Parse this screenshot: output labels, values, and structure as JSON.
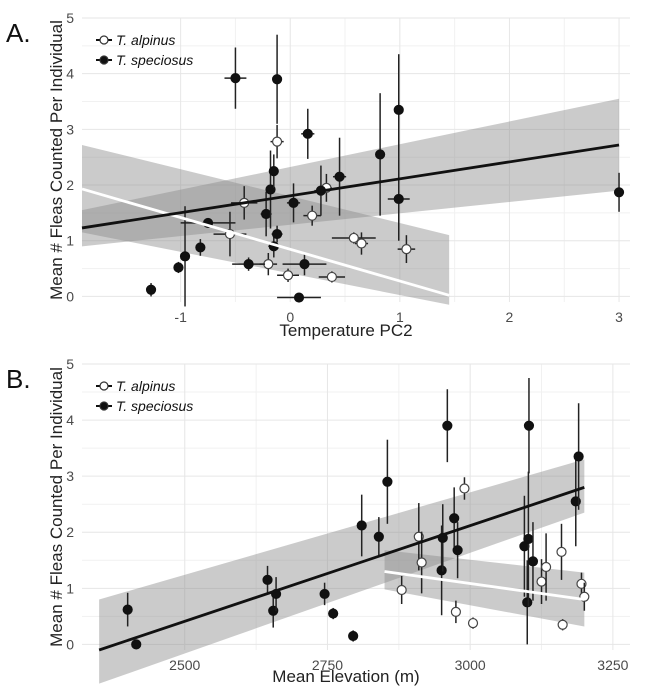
{
  "chart_data": [
    {
      "panel_label": "A.",
      "type": "scatter",
      "xlabel": "Temperature PC2",
      "ylabel": "Mean # Fleas Counted Per Individual",
      "xlim": [
        -1.9,
        3.1
      ],
      "ylim": [
        -0.1,
        5
      ],
      "xticks": [
        -1,
        0,
        1,
        2,
        3
      ],
      "yticks": [
        0,
        1,
        2,
        3,
        4,
        5
      ],
      "legend": [
        "T. alpinus",
        "T. speciosus"
      ],
      "legend_position": "top-left",
      "grid": true,
      "series": [
        {
          "name": "T. alpinus",
          "marker": "open-circle",
          "points": [
            {
              "x": -0.42,
              "y": 1.68,
              "xerr": 0.12,
              "yerr": 0.3
            },
            {
              "x": -0.55,
              "y": 1.12,
              "xerr": 0.15,
              "yerr": 0.4
            },
            {
              "x": -0.2,
              "y": 0.58,
              "xerr": 0.08,
              "yerr": 0.2
            },
            {
              "x": -0.12,
              "y": 2.78,
              "xerr": 0.06,
              "yerr": 0.3
            },
            {
              "x": -0.02,
              "y": 0.38,
              "xerr": 0.1,
              "yerr": 0.12
            },
            {
              "x": 0.2,
              "y": 1.45,
              "xerr": 0.08,
              "yerr": 0.18
            },
            {
              "x": 0.33,
              "y": 1.95,
              "xerr": 0.05,
              "yerr": 0.25
            },
            {
              "x": 0.38,
              "y": 0.35,
              "xerr": 0.12,
              "yerr": 0.1
            },
            {
              "x": 0.58,
              "y": 1.05,
              "xerr": 0.2,
              "yerr": 0.1
            },
            {
              "x": 0.65,
              "y": 0.95,
              "xerr": 0.06,
              "yerr": 0.2
            },
            {
              "x": 1.06,
              "y": 0.85,
              "xerr": 0.08,
              "yerr": 0.25
            }
          ]
        },
        {
          "name": "T. speciosus",
          "marker": "filled-circle",
          "points": [
            {
              "x": -1.27,
              "y": 0.12,
              "xerr": 0,
              "yerr": 0.12
            },
            {
              "x": -1.02,
              "y": 0.52,
              "xerr": 0,
              "yerr": 0.1
            },
            {
              "x": -0.96,
              "y": 0.72,
              "xerr": 0,
              "yerr": 0.9
            },
            {
              "x": -0.82,
              "y": 0.88,
              "xerr": 0,
              "yerr": 0.15
            },
            {
              "x": -0.75,
              "y": 1.32,
              "xerr": 0.25,
              "yerr": 0
            },
            {
              "x": -0.5,
              "y": 3.92,
              "xerr": 0.1,
              "yerr": 0.55
            },
            {
              "x": -0.38,
              "y": 0.58,
              "xerr": 0.15,
              "yerr": 0.12
            },
            {
              "x": -0.22,
              "y": 1.48,
              "xerr": 0.05,
              "yerr": 0.4
            },
            {
              "x": -0.18,
              "y": 1.92,
              "xerr": 0.04,
              "yerr": 0.7
            },
            {
              "x": -0.15,
              "y": 2.25,
              "xerr": 0.04,
              "yerr": 0.3
            },
            {
              "x": -0.15,
              "y": 0.9,
              "xerr": 0.05,
              "yerr": 0.2
            },
            {
              "x": -0.12,
              "y": 1.12,
              "xerr": 0.05,
              "yerr": 0.15
            },
            {
              "x": -0.12,
              "y": 3.9,
              "xerr": 0.03,
              "yerr": 0.8
            },
            {
              "x": 0.03,
              "y": 1.68,
              "xerr": 0.06,
              "yerr": 0.35
            },
            {
              "x": 0.08,
              "y": -0.02,
              "xerr": 0.2,
              "yerr": 0
            },
            {
              "x": 0.13,
              "y": 0.58,
              "xerr": 0.2,
              "yerr": 0.2
            },
            {
              "x": 0.16,
              "y": 2.92,
              "xerr": 0.06,
              "yerr": 0.45
            },
            {
              "x": 0.28,
              "y": 1.9,
              "xerr": 0.06,
              "yerr": 0.45
            },
            {
              "x": 0.45,
              "y": 2.15,
              "xerr": 0.06,
              "yerr": 0.7
            },
            {
              "x": 0.82,
              "y": 2.55,
              "xerr": 0,
              "yerr": 1.1
            },
            {
              "x": 0.99,
              "y": 3.35,
              "xerr": 0,
              "yerr": 1.0
            },
            {
              "x": 0.99,
              "y": 1.75,
              "xerr": 0.1,
              "yerr": 0.75
            },
            {
              "x": 3.0,
              "y": 1.87,
              "xerr": 0,
              "yerr": 0.35
            }
          ]
        }
      ],
      "fits": [
        {
          "name": "T. alpinus",
          "color": "#ffffff",
          "x": [
            -1.9,
            1.45
          ],
          "y": [
            1.93,
            0.02
          ],
          "band_upper": [
            2.72,
            1.1
          ],
          "band_lower": [
            1.15,
            -0.15
          ]
        },
        {
          "name": "T. speciosus",
          "color": "#111111",
          "x": [
            -1.9,
            3.0
          ],
          "y": [
            1.23,
            2.72
          ],
          "band_upper": [
            1.55,
            3.55
          ],
          "band_lower": [
            0.9,
            1.9
          ]
        }
      ]
    },
    {
      "panel_label": "B.",
      "type": "scatter",
      "xlabel": "Mean Elevation (m)",
      "ylabel": "Mean # Fleas Counted Per Individual",
      "xlim": [
        2320,
        3280
      ],
      "ylim": [
        -0.1,
        5
      ],
      "xticks": [
        2500,
        2750,
        3000,
        3250
      ],
      "yticks": [
        0,
        1,
        2,
        3,
        4,
        5
      ],
      "legend": [
        "T. alpinus",
        "T. speciosus"
      ],
      "legend_position": "top-left",
      "grid": true,
      "series": [
        {
          "name": "T. alpinus",
          "marker": "open-circle",
          "points": [
            {
              "x": 2880,
              "y": 0.97,
              "yerr": 0.25
            },
            {
              "x": 2910,
              "y": 1.92,
              "yerr": 0.6
            },
            {
              "x": 2915,
              "y": 1.46,
              "yerr": 0.55
            },
            {
              "x": 2975,
              "y": 0.58,
              "yerr": 0.2
            },
            {
              "x": 2990,
              "y": 2.78,
              "yerr": 0.2
            },
            {
              "x": 3005,
              "y": 0.38,
              "yerr": 0.1
            },
            {
              "x": 3125,
              "y": 1.12,
              "yerr": 0.4
            },
            {
              "x": 3133,
              "y": 1.38,
              "yerr": 0.6
            },
            {
              "x": 3160,
              "y": 1.65,
              "yerr": 0.5
            },
            {
              "x": 3162,
              "y": 0.35,
              "yerr": 0.1
            },
            {
              "x": 3195,
              "y": 1.08,
              "yerr": 0.2
            },
            {
              "x": 3200,
              "y": 0.85,
              "yerr": 0.25
            }
          ]
        },
        {
          "name": "T. speciosus",
          "marker": "filled-circle",
          "points": [
            {
              "x": 2400,
              "y": 0.62,
              "yerr": 0.3
            },
            {
              "x": 2415,
              "y": 0.0,
              "yerr": 0
            },
            {
              "x": 2645,
              "y": 1.15,
              "yerr": 0.25
            },
            {
              "x": 2655,
              "y": 0.6,
              "yerr": 0.3
            },
            {
              "x": 2660,
              "y": 0.9,
              "yerr": 0.3
            },
            {
              "x": 2745,
              "y": 0.9,
              "yerr": 0.2
            },
            {
              "x": 2760,
              "y": 0.55,
              "yerr": 0.1
            },
            {
              "x": 2795,
              "y": 0.15,
              "yerr": 0.1
            },
            {
              "x": 2810,
              "y": 2.12,
              "yerr": 0.55
            },
            {
              "x": 2840,
              "y": 1.92,
              "yerr": 0.35
            },
            {
              "x": 2855,
              "y": 2.9,
              "yerr": 0.75
            },
            {
              "x": 2950,
              "y": 1.32,
              "yerr": 0.8
            },
            {
              "x": 2952,
              "y": 1.9,
              "yerr": 0.6
            },
            {
              "x": 2960,
              "y": 3.9,
              "yerr": 0.65
            },
            {
              "x": 2972,
              "y": 2.25,
              "yerr": 0.55
            },
            {
              "x": 2978,
              "y": 1.68,
              "yerr": 0.5
            },
            {
              "x": 3095,
              "y": 1.75,
              "yerr": 0.9
            },
            {
              "x": 3100,
              "y": 0.75,
              "yerr": 0.75
            },
            {
              "x": 3102,
              "y": 1.88,
              "yerr": 1.2
            },
            {
              "x": 3103,
              "y": 3.9,
              "yerr": 0.85
            },
            {
              "x": 3110,
              "y": 1.48,
              "yerr": 0.7
            },
            {
              "x": 3185,
              "y": 2.55,
              "yerr": 0.8
            },
            {
              "x": 3190,
              "y": 3.35,
              "yerr": 0.95
            }
          ]
        }
      ],
      "fits": [
        {
          "name": "T. alpinus",
          "color": "#ffffff",
          "x": [
            2850,
            3200
          ],
          "y": [
            1.3,
            0.8
          ],
          "band_upper": [
            1.68,
            1.28
          ],
          "band_lower": [
            0.98,
            0.32
          ]
        },
        {
          "name": "T. speciosus",
          "color": "#111111",
          "x": [
            2350,
            3200
          ],
          "y": [
            -0.1,
            2.8
          ],
          "band_upper": [
            0.8,
            3.3
          ],
          "band_lower": [
            -0.7,
            2.35
          ]
        }
      ]
    }
  ]
}
